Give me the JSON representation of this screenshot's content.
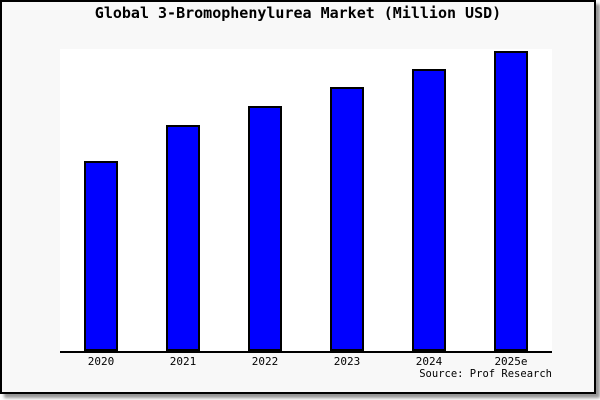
{
  "title": "Global 3-Bromophenylurea Market (Million USD)",
  "source": "Source: Prof Research",
  "colors": {
    "bar_fill": "#0000FF",
    "bar_border": "#000000",
    "frame_border": "#000000",
    "background": "#F8F8F8",
    "plot_background": "#FFFFFF",
    "text": "#000000",
    "shadow": "#949494"
  },
  "chart_data": {
    "type": "bar",
    "title": "Global 3-Bromophenylurea Market (Million USD)",
    "categories": [
      "2020",
      "2021",
      "2022",
      "2023",
      "2024",
      "2025e"
    ],
    "values": [
      63.3,
      75.3,
      81.7,
      88.0,
      94.0,
      100.0
    ],
    "value_note": "No y-axis, gridlines or data labels are shown in the chart; values are bar heights estimated relative to the 2025e bar = 100",
    "xlabel": "",
    "ylabel": "",
    "ylim": [
      0,
      101
    ],
    "grid": false,
    "y_axis_shown": false,
    "legend": "none",
    "source": "Source: Prof Research"
  }
}
